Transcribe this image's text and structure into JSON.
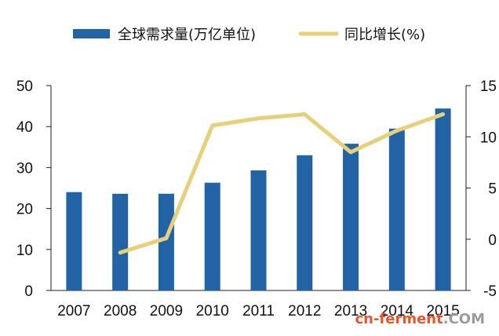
{
  "chart_data": {
    "type": "bar+line",
    "categories": [
      "2007",
      "2008",
      "2009",
      "2010",
      "2011",
      "2012",
      "2013",
      "2014",
      "2015"
    ],
    "series": [
      {
        "name": "全球需求量(万亿单位)",
        "type": "bar",
        "axis": "left",
        "color": "#2163a4",
        "values": [
          24.0,
          23.6,
          23.6,
          26.3,
          29.3,
          33.0,
          35.8,
          39.5,
          44.4
        ]
      },
      {
        "name": "同比增长(%)",
        "type": "line",
        "axis": "right",
        "color": "#e8cf7a",
        "values": [
          null,
          -1.3,
          0.1,
          11.1,
          11.8,
          12.2,
          8.5,
          10.6,
          12.2
        ]
      }
    ],
    "y_left": {
      "min": 0,
      "max": 50,
      "ticks": [
        "0",
        "10",
        "20",
        "30",
        "40",
        "50"
      ]
    },
    "y_right": {
      "min": -5,
      "max": 15,
      "ticks": [
        "-5",
        "0",
        "5",
        "10",
        "15"
      ]
    },
    "legend_position": "top",
    "grid": false
  },
  "watermark": {
    "text": "cn-ferment",
    "suffix": ".COM",
    "color": "#e6562b",
    "suffix_color": "#9a9a9a"
  }
}
